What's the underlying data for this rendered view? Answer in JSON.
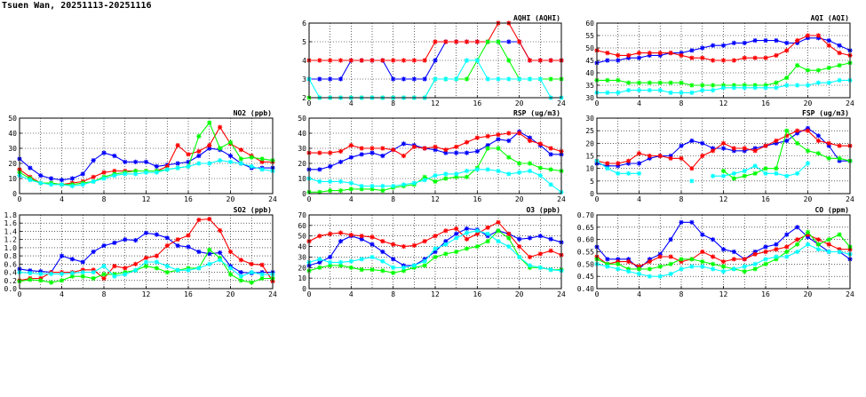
{
  "page": {
    "title": "Tsuen Wan, 20251113-20251116"
  },
  "colors": {
    "series": [
      "#0000ff",
      "#ff0000",
      "#00ff00",
      "#00ffff"
    ]
  },
  "chart_data": [
    {
      "id": "aqhi",
      "type": "line",
      "title": "AQHI (AQHI)",
      "xlim": [
        0,
        24
      ],
      "xticks": [
        0,
        4,
        8,
        12,
        16,
        20,
        24
      ],
      "ylim": [
        2,
        6
      ],
      "yticks": [
        "2",
        "3",
        "4",
        "5",
        "6"
      ],
      "grid": true,
      "series": [
        {
          "values": [
            3,
            3,
            3,
            3,
            4,
            4,
            4,
            4,
            3,
            3,
            3,
            3,
            4,
            5,
            5,
            5,
            5,
            5,
            5,
            5,
            5,
            4,
            4,
            4,
            4
          ]
        },
        {
          "values": [
            4,
            4,
            4,
            4,
            4,
            4,
            4,
            4,
            4,
            4,
            4,
            4,
            5,
            5,
            5,
            5,
            5,
            5,
            6,
            6,
            5,
            4,
            4,
            4,
            4
          ]
        },
        {
          "values": [
            2,
            2,
            2,
            2,
            2,
            2,
            2,
            2,
            2,
            2,
            2,
            2,
            3,
            3,
            3,
            3,
            4,
            5,
            5,
            4,
            3,
            3,
            3,
            3,
            3
          ]
        },
        {
          "values": [
            3,
            2,
            2,
            2,
            2,
            2,
            2,
            2,
            2,
            2,
            2,
            2,
            3,
            3,
            3,
            4,
            4,
            3,
            3,
            3,
            3,
            3,
            3,
            2,
            2
          ]
        }
      ]
    },
    {
      "id": "aqi",
      "type": "line",
      "title": "AQI (AQI)",
      "xlim": [
        0,
        24
      ],
      "xticks": [
        0,
        4,
        8,
        12,
        16,
        20,
        24
      ],
      "ylim": [
        30,
        60
      ],
      "yticks": [
        "30",
        "35",
        "40",
        "45",
        "50",
        "55",
        "60"
      ],
      "grid": true,
      "series": [
        {
          "values": [
            44,
            45,
            45,
            46,
            46,
            47,
            47,
            48,
            48,
            49,
            50,
            51,
            51,
            52,
            52,
            53,
            53,
            53,
            52,
            52,
            54,
            54,
            53,
            51,
            49
          ]
        },
        {
          "values": [
            49,
            48,
            47,
            47,
            48,
            48,
            48,
            48,
            47,
            46,
            46,
            45,
            45,
            45,
            46,
            46,
            46,
            47,
            49,
            53,
            55,
            55,
            51,
            48,
            47
          ]
        },
        {
          "values": [
            37,
            37,
            37,
            36,
            36,
            36,
            36,
            36,
            36,
            35,
            35,
            35,
            35,
            35,
            35,
            35,
            35,
            36,
            38,
            43,
            41,
            41,
            42,
            43,
            44
          ]
        },
        {
          "values": [
            32,
            32,
            32,
            33,
            33,
            33,
            33,
            32,
            32,
            32,
            33,
            33,
            34,
            34,
            34,
            34,
            34,
            34,
            35,
            35,
            35,
            36,
            36,
            37,
            37
          ]
        }
      ]
    },
    {
      "id": "no2",
      "type": "line",
      "title": "NO2 (ppb)",
      "xlim": [
        0,
        24
      ],
      "xticks": [
        0,
        4,
        8,
        12,
        16,
        20,
        24
      ],
      "ylim": [
        0,
        50
      ],
      "yticks": [
        "0",
        "10",
        "20",
        "30",
        "40",
        "50"
      ],
      "grid": true,
      "series": [
        {
          "values": [
            23,
            17,
            12,
            10,
            9,
            10,
            13,
            22,
            27,
            25,
            21,
            21,
            21,
            18,
            19,
            20,
            21,
            25,
            30,
            29,
            25,
            20,
            17,
            17,
            17
          ]
        },
        {
          "values": [
            16,
            11,
            7,
            7,
            6,
            7,
            8,
            11,
            14,
            15,
            15,
            15,
            15,
            15,
            18,
            32,
            26,
            28,
            32,
            44,
            33,
            29,
            25,
            21,
            21
          ]
        },
        {
          "values": [
            14,
            10,
            7,
            7,
            6,
            6,
            7,
            8,
            11,
            13,
            14,
            15,
            15,
            15,
            16,
            17,
            18,
            38,
            47,
            30,
            34,
            23,
            24,
            23,
            22
          ]
        },
        {
          "values": [
            12,
            9,
            7,
            6,
            6,
            5,
            6,
            8,
            10,
            12,
            13,
            13,
            14,
            14,
            16,
            17,
            18,
            20,
            20,
            22,
            21,
            20,
            18,
            16,
            15
          ]
        }
      ]
    },
    {
      "id": "rsp",
      "type": "line",
      "title": "RSP (ug/m3)",
      "xlim": [
        0,
        24
      ],
      "xticks": [
        0,
        4,
        8,
        12,
        16,
        20,
        24
      ],
      "ylim": [
        0,
        50
      ],
      "yticks": [
        "0",
        "10",
        "20",
        "30",
        "40",
        "50"
      ],
      "grid": true,
      "series": [
        {
          "values": [
            16,
            16,
            18,
            21,
            24,
            26,
            27,
            25,
            29,
            33,
            32,
            30,
            29,
            27,
            27,
            27,
            28,
            32,
            36,
            35,
            41,
            37,
            32,
            26,
            26
          ]
        },
        {
          "values": [
            27,
            27,
            27,
            28,
            32,
            30,
            30,
            30,
            29,
            25,
            31,
            30,
            31,
            29,
            31,
            34,
            37,
            38,
            39,
            40,
            40,
            35,
            33,
            30,
            28
          ]
        },
        {
          "values": [
            1,
            1,
            2,
            2,
            3,
            3,
            3,
            2,
            4,
            5,
            6,
            11,
            8,
            10,
            11,
            11,
            17,
            30,
            30,
            24,
            20,
            20,
            17,
            16,
            15
          ]
        },
        {
          "values": [
            10,
            8,
            8,
            8,
            7,
            5,
            5,
            5,
            5,
            6,
            7,
            9,
            12,
            13,
            13,
            15,
            16,
            16,
            15,
            13,
            14,
            15,
            12,
            6,
            1
          ]
        }
      ]
    },
    {
      "id": "fsp",
      "type": "line",
      "title": "FSP (ug/m3)",
      "xlim": [
        0,
        24
      ],
      "xticks": [
        0,
        4,
        8,
        12,
        16,
        20,
        24
      ],
      "ylim": [
        0,
        30
      ],
      "yticks": [
        "0",
        "5",
        "10",
        "15",
        "20",
        "25",
        "30"
      ],
      "grid": true,
      "series": [
        {
          "values": [
            12,
            11,
            11,
            12,
            12,
            14,
            15,
            15,
            19,
            21,
            20,
            18,
            18,
            17,
            17,
            18,
            19,
            20,
            21,
            24,
            26,
            23,
            19,
            13,
            13
          ]
        },
        {
          "values": [
            13,
            12,
            12,
            13,
            16,
            15,
            15,
            14,
            14,
            10,
            15,
            17,
            20,
            18,
            18,
            17,
            19,
            21,
            23,
            25,
            25,
            21,
            20,
            19,
            19
          ]
        },
        {
          "values": [
            null,
            null,
            null,
            null,
            null,
            null,
            null,
            null,
            null,
            null,
            null,
            null,
            9,
            6,
            7,
            8,
            10,
            10,
            25,
            20,
            17,
            16,
            14,
            14,
            13
          ]
        },
        {
          "values": [
            13,
            10,
            8,
            8,
            8,
            null,
            null,
            null,
            null,
            5,
            null,
            7,
            7,
            8,
            9,
            11,
            8,
            8,
            7,
            8,
            12,
            null,
            null,
            null,
            null
          ]
        }
      ]
    },
    {
      "id": "so2",
      "type": "line",
      "title": "SO2 (ppb)",
      "xlim": [
        0,
        24
      ],
      "xticks": [
        0,
        4,
        8,
        12,
        16,
        20,
        24
      ],
      "ylim": [
        0,
        1.8
      ],
      "yticks": [
        "0.0",
        "0.2",
        "0.4",
        "0.6",
        "0.8",
        "1.0",
        "1.2",
        "1.4",
        "1.6",
        "1.8"
      ],
      "grid": true,
      "series": [
        {
          "values": [
            0.48,
            0.44,
            0.42,
            0.4,
            0.8,
            0.72,
            0.65,
            0.9,
            1.05,
            1.12,
            1.2,
            1.18,
            1.36,
            1.32,
            1.24,
            1.05,
            1.02,
            0.9,
            0.85,
            0.88,
            0.55,
            0.4,
            0.38,
            0.4,
            0.4
          ]
        },
        {
          "values": [
            0.2,
            0.25,
            0.25,
            0.4,
            0.4,
            0.4,
            0.46,
            0.46,
            0.25,
            0.55,
            0.5,
            0.6,
            0.75,
            0.8,
            1.05,
            1.2,
            1.3,
            1.68,
            1.7,
            1.42,
            0.9,
            0.7,
            0.6,
            0.58,
            0.18
          ]
        },
        {
          "values": [
            0.18,
            0.22,
            0.2,
            0.15,
            0.2,
            0.3,
            0.3,
            0.25,
            0.35,
            0.35,
            0.4,
            0.45,
            0.55,
            0.5,
            0.4,
            0.45,
            0.5,
            0.5,
            0.95,
            0.75,
            0.35,
            0.2,
            0.15,
            0.25,
            0.25
          ]
        },
        {
          "values": [
            0.4,
            0.38,
            0.36,
            0.36,
            0.36,
            0.38,
            0.4,
            0.4,
            0.55,
            0.3,
            0.35,
            0.45,
            0.65,
            0.65,
            0.55,
            0.45,
            0.45,
            0.5,
            0.6,
            0.7,
            0.5,
            0.3,
            0.4,
            0.35,
            0.35
          ]
        }
      ]
    },
    {
      "id": "o3",
      "type": "line",
      "title": "O3 (ppb)",
      "xlim": [
        0,
        24
      ],
      "xticks": [
        0,
        4,
        8,
        12,
        16,
        20,
        24
      ],
      "ylim": [
        0,
        70
      ],
      "yticks": [
        "0",
        "10",
        "20",
        "30",
        "40",
        "50",
        "60",
        "70"
      ],
      "grid": true,
      "series": [
        {
          "values": [
            22,
            25,
            30,
            45,
            50,
            47,
            42,
            35,
            28,
            22,
            22,
            28,
            35,
            45,
            52,
            57,
            56,
            50,
            55,
            52,
            47,
            48,
            50,
            47,
            44
          ]
        },
        {
          "values": [
            45,
            50,
            52,
            53,
            51,
            50,
            49,
            45,
            42,
            40,
            41,
            45,
            50,
            55,
            57,
            47,
            52,
            58,
            63,
            52,
            40,
            30,
            33,
            36,
            32
          ]
        },
        {
          "values": [
            17,
            20,
            22,
            22,
            20,
            18,
            18,
            17,
            15,
            17,
            20,
            22,
            30,
            33,
            35,
            38,
            40,
            45,
            55,
            48,
            30,
            20,
            20,
            18,
            18
          ]
        },
        {
          "values": [
            25,
            28,
            25,
            25,
            26,
            28,
            30,
            26,
            20,
            20,
            22,
            26,
            38,
            42,
            48,
            53,
            55,
            52,
            45,
            40,
            30,
            22,
            20,
            18,
            17
          ]
        }
      ]
    },
    {
      "id": "co",
      "type": "line",
      "title": "CO (ppm)",
      "xlim": [
        0,
        24
      ],
      "xticks": [
        0,
        4,
        8,
        12,
        16,
        20,
        24
      ],
      "ylim": [
        0.4,
        0.7
      ],
      "yticks": [
        "0.40",
        "0.45",
        "0.50",
        "0.55",
        "0.60",
        "0.65",
        "0.70"
      ],
      "grid": true,
      "series": [
        {
          "values": [
            0.57,
            0.52,
            0.52,
            0.52,
            0.48,
            0.52,
            0.54,
            0.6,
            0.67,
            0.67,
            0.62,
            0.6,
            0.56,
            0.55,
            0.52,
            0.55,
            0.57,
            0.58,
            0.62,
            0.65,
            0.61,
            0.58,
            0.55,
            0.55,
            0.52
          ]
        },
        {
          "values": [
            0.53,
            0.5,
            0.51,
            0.51,
            0.49,
            0.51,
            0.53,
            0.53,
            0.51,
            0.52,
            0.55,
            0.53,
            0.51,
            0.52,
            0.52,
            0.54,
            0.55,
            0.56,
            0.57,
            0.6,
            0.62,
            0.6,
            0.58,
            0.56,
            0.56
          ]
        },
        {
          "values": [
            0.52,
            0.5,
            0.5,
            0.48,
            0.48,
            0.48,
            0.49,
            0.5,
            0.52,
            0.52,
            0.51,
            0.5,
            0.49,
            0.48,
            0.47,
            0.48,
            0.5,
            0.52,
            0.55,
            0.58,
            0.63,
            0.58,
            0.6,
            0.62,
            0.57
          ]
        },
        {
          "values": [
            0.5,
            0.49,
            0.48,
            0.47,
            0.46,
            0.45,
            0.45,
            0.46,
            0.48,
            0.49,
            0.49,
            0.48,
            0.47,
            0.48,
            0.49,
            0.5,
            0.52,
            0.53,
            0.53,
            0.55,
            0.58,
            0.56,
            0.55,
            0.55,
            0.54
          ]
        }
      ]
    }
  ]
}
